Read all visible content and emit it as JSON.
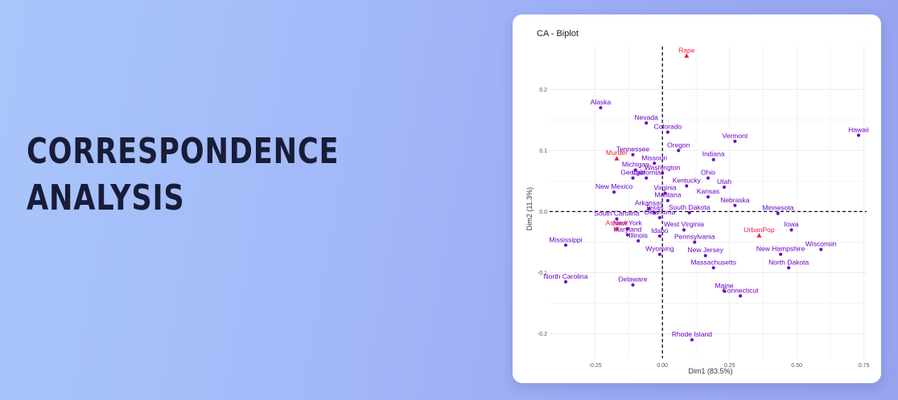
{
  "heading": {
    "line1": "CORRESPONDENCE",
    "line2": "ANALYSIS"
  },
  "colors": {
    "background": "#a3b8f8",
    "heading": "#181c38",
    "states": "#6a00c8",
    "variables": "#ee1c3a",
    "axis_dash": "#111111",
    "grid": "#ececec"
  },
  "chart_data": {
    "type": "scatter",
    "title": "CA - Biplot",
    "xlabel": "Dim1 (83.5%)",
    "ylabel": "Dim2 (11.3%)",
    "xlim": [
      -0.42,
      0.76
    ],
    "ylim": [
      -0.24,
      0.27
    ],
    "xticks": [
      "-0.25",
      "0.00",
      "0.25",
      "0.50",
      "0.75"
    ],
    "yticks": [
      "0.2",
      "0.1",
      "0.0",
      "-0.1",
      "-0.2"
    ],
    "grid": true,
    "reference_lines": [
      0,
      0
    ],
    "series": [
      {
        "name": "rows",
        "marker": "circle",
        "points": [
          {
            "label": "Alaska",
            "x": -0.23,
            "y": 0.17
          },
          {
            "label": "Nevada",
            "x": -0.06,
            "y": 0.145
          },
          {
            "label": "Colorado",
            "x": 0.02,
            "y": 0.13
          },
          {
            "label": "Vermont",
            "x": 0.27,
            "y": 0.115
          },
          {
            "label": "Hawaii",
            "x": 0.73,
            "y": 0.125
          },
          {
            "label": "Oregon",
            "x": 0.06,
            "y": 0.1
          },
          {
            "label": "Tennessee",
            "x": -0.11,
            "y": 0.093
          },
          {
            "label": "Indiana",
            "x": 0.19,
            "y": 0.085
          },
          {
            "label": "Missouri",
            "x": -0.03,
            "y": 0.079
          },
          {
            "label": "Michigan",
            "x": -0.1,
            "y": 0.068
          },
          {
            "label": "Washington",
            "x": 0.0,
            "y": 0.063
          },
          {
            "label": "Georgia",
            "x": -0.11,
            "y": 0.055
          },
          {
            "label": "California",
            "x": -0.06,
            "y": 0.055
          },
          {
            "label": "Ohio",
            "x": 0.17,
            "y": 0.055
          },
          {
            "label": "Kentucky",
            "x": 0.09,
            "y": 0.042
          },
          {
            "label": "Utah",
            "x": 0.23,
            "y": 0.04
          },
          {
            "label": "New Mexico",
            "x": -0.18,
            "y": 0.032
          },
          {
            "label": "Virginia",
            "x": 0.01,
            "y": 0.03
          },
          {
            "label": "Kansas",
            "x": 0.17,
            "y": 0.024
          },
          {
            "label": "Montana",
            "x": 0.02,
            "y": 0.018
          },
          {
            "label": "Nebraska",
            "x": 0.27,
            "y": 0.01
          },
          {
            "label": "Arkansas",
            "x": -0.05,
            "y": 0.005
          },
          {
            "label": "Texas",
            "x": -0.03,
            "y": -0.002
          },
          {
            "label": "South Dakota",
            "x": 0.1,
            "y": -0.002
          },
          {
            "label": "Minnesota",
            "x": 0.43,
            "y": -0.003
          },
          {
            "label": "Oklahoma",
            "x": -0.01,
            "y": -0.01
          },
          {
            "label": "South Carolina",
            "x": -0.17,
            "y": -0.012
          },
          {
            "label": "New York",
            "x": -0.13,
            "y": -0.028
          },
          {
            "label": "West Virginia",
            "x": 0.08,
            "y": -0.03
          },
          {
            "label": "Maryland",
            "x": -0.13,
            "y": -0.038
          },
          {
            "label": "Idaho",
            "x": -0.01,
            "y": -0.04
          },
          {
            "label": "Iowa",
            "x": 0.48,
            "y": -0.03
          },
          {
            "label": "Illinois",
            "x": -0.09,
            "y": -0.048
          },
          {
            "label": "Pennsylvania",
            "x": 0.12,
            "y": -0.05
          },
          {
            "label": "Wisconsin",
            "x": 0.59,
            "y": -0.062
          },
          {
            "label": "Mississippi",
            "x": -0.36,
            "y": -0.055
          },
          {
            "label": "New Hampshire",
            "x": 0.44,
            "y": -0.07
          },
          {
            "label": "Wyoming",
            "x": -0.01,
            "y": -0.07
          },
          {
            "label": "New Jersey",
            "x": 0.16,
            "y": -0.072
          },
          {
            "label": "Massachusetts",
            "x": 0.19,
            "y": -0.092
          },
          {
            "label": "North Dakota",
            "x": 0.47,
            "y": -0.092
          },
          {
            "label": "North Carolina",
            "x": -0.36,
            "y": -0.115
          },
          {
            "label": "Delaware",
            "x": -0.11,
            "y": -0.12
          },
          {
            "label": "Maine",
            "x": 0.23,
            "y": -0.13
          },
          {
            "label": "Connecticut",
            "x": 0.29,
            "y": -0.138
          },
          {
            "label": "Rhode Island",
            "x": 0.11,
            "y": -0.21
          }
        ]
      },
      {
        "name": "columns",
        "marker": "triangle",
        "points": [
          {
            "label": "Rape",
            "x": 0.09,
            "y": 0.255
          },
          {
            "label": "Murder",
            "x": -0.17,
            "y": 0.087
          },
          {
            "label": "Assault",
            "x": -0.17,
            "y": -0.028
          },
          {
            "label": "UrbanPop",
            "x": 0.36,
            "y": -0.039
          }
        ]
      }
    ]
  }
}
